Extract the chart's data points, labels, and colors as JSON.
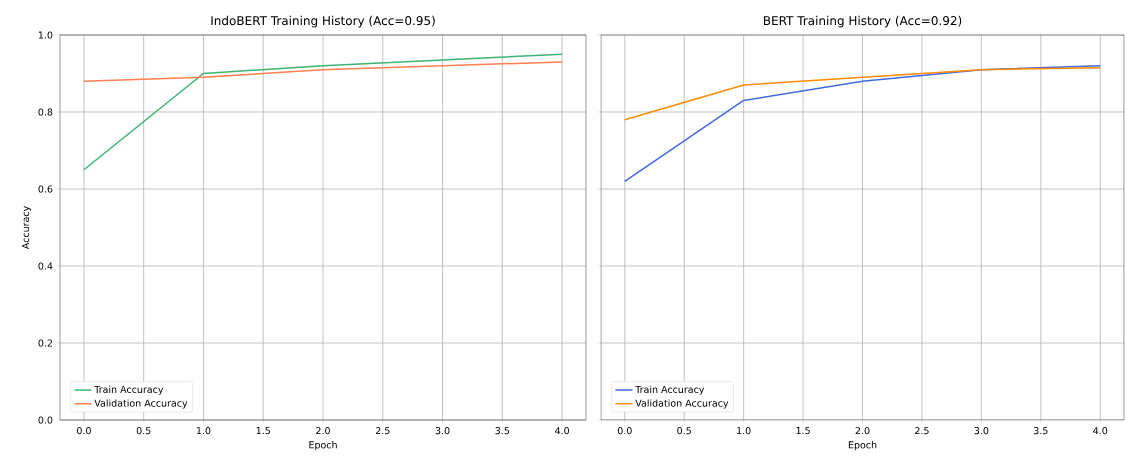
{
  "chart_data": [
    {
      "type": "line",
      "title": "IndoBERT Training History (Acc=0.95)",
      "xlabel": "Epoch",
      "ylabel": "Accuracy",
      "x": [
        0,
        1,
        2,
        3,
        4
      ],
      "series": [
        {
          "name": "Train Accuracy",
          "color": "#3cb371",
          "values": [
            0.65,
            0.9,
            0.92,
            0.935,
            0.95
          ]
        },
        {
          "name": "Validation Accuracy",
          "color": "#ff7f50",
          "values": [
            0.88,
            0.89,
            0.91,
            0.92,
            0.93
          ]
        }
      ],
      "xlim": [
        -0.2,
        4.2
      ],
      "ylim": [
        0,
        1
      ],
      "xticks": [
        {
          "value": 0,
          "label": "0.0"
        },
        {
          "value": 0.5,
          "label": "0.5"
        },
        {
          "value": 1,
          "label": "1.0"
        },
        {
          "value": 1.5,
          "label": "1.5"
        },
        {
          "value": 2,
          "label": "2.0"
        },
        {
          "value": 2.5,
          "label": "2.5"
        },
        {
          "value": 3,
          "label": "3.0"
        },
        {
          "value": 3.5,
          "label": "3.5"
        },
        {
          "value": 4,
          "label": "4.0"
        }
      ],
      "yticks": [
        {
          "value": 0,
          "label": "0.0"
        },
        {
          "value": 0.2,
          "label": "0.2"
        },
        {
          "value": 0.4,
          "label": "0.4"
        },
        {
          "value": 0.6,
          "label": "0.6"
        },
        {
          "value": 0.8,
          "label": "0.8"
        },
        {
          "value": 1,
          "label": "1.0"
        }
      ],
      "grid": true,
      "legend": "bottom left"
    },
    {
      "type": "line",
      "title": "BERT Training History (Acc=0.92)",
      "xlabel": "Epoch",
      "x": [
        0,
        1,
        2,
        3,
        4
      ],
      "series": [
        {
          "name": "Train Accuracy",
          "color": "#4169e1",
          "values": [
            0.62,
            0.83,
            0.88,
            0.91,
            0.92
          ]
        },
        {
          "name": "Validation Accuracy",
          "color": "#ff8c00",
          "values": [
            0.78,
            0.87,
            0.89,
            0.91,
            0.915
          ]
        }
      ],
      "xlim": [
        -0.2,
        4.2
      ],
      "ylim": [
        0,
        1
      ],
      "xticks": [
        {
          "value": 0,
          "label": "0.0"
        },
        {
          "value": 0.5,
          "label": "0.5"
        },
        {
          "value": 1,
          "label": "1.0"
        },
        {
          "value": 1.5,
          "label": "1.5"
        },
        {
          "value": 2,
          "label": "2.0"
        },
        {
          "value": 2.5,
          "label": "2.5"
        },
        {
          "value": 3,
          "label": "3.0"
        },
        {
          "value": 3.5,
          "label": "3.5"
        },
        {
          "value": 4,
          "label": "4.0"
        }
      ],
      "yticks": [
        {
          "value": 0,
          "label": null
        },
        {
          "value": 0.2,
          "label": null
        },
        {
          "value": 0.4,
          "label": null
        },
        {
          "value": 0.6,
          "label": null
        },
        {
          "value": 0.8,
          "label": null
        },
        {
          "value": 1,
          "label": null
        }
      ],
      "grid": true,
      "legend": "bottom left",
      "tick_labels": "x"
    }
  ]
}
